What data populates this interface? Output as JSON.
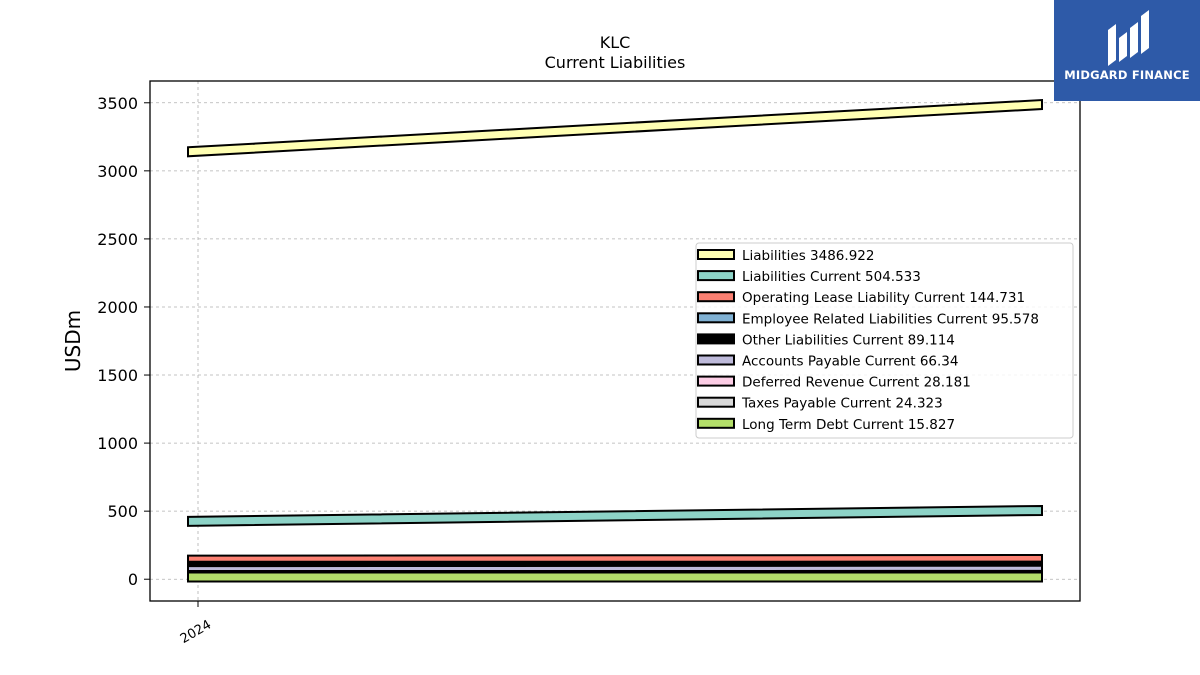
{
  "chart_data": {
    "type": "area",
    "title": "KLC",
    "subtitle": "Current  Liabilities",
    "ylabel": "USDm",
    "xlabel": "",
    "x_ticks": [
      "2024"
    ],
    "ylim": [
      -160,
      3660
    ],
    "y_ticks": [
      0,
      500,
      1000,
      1500,
      2000,
      2500,
      3000,
      3500
    ],
    "grid": true,
    "legend_position": "center-right",
    "series": [
      {
        "name": "Liabilities",
        "legend_label": "Liabilities  3486.922",
        "start": 3140,
        "end": 3487,
        "color": "#ffffb3"
      },
      {
        "name": "Liabilities Current",
        "legend_label": "Liabilities Current  504.533",
        "start": 425,
        "end": 505,
        "color": "#8dd3c7"
      },
      {
        "name": "Operating Lease Liability Current",
        "legend_label": "Operating Lease Liability Current  144.731",
        "start": 140,
        "end": 145,
        "color": "#fb8072"
      },
      {
        "name": "Employee Related Liabilities Current",
        "legend_label": "Employee Related Liabilities Current  95.578",
        "start": 95,
        "end": 96,
        "color": "#80b1d3"
      },
      {
        "name": "Other Liabilities Current",
        "legend_label": "Other Liabilities Current  89.114",
        "start": 89,
        "end": 89,
        "color": "#000000"
      },
      {
        "name": "Accounts Payable Current",
        "legend_label": "Accounts Payable Current  66.34",
        "start": 63,
        "end": 66,
        "color": "#bebada"
      },
      {
        "name": "Deferred Revenue Current",
        "legend_label": "Deferred Revenue Current  28.181",
        "start": 27,
        "end": 28,
        "color": "#fccde5"
      },
      {
        "name": "Taxes Payable Current",
        "legend_label": "Taxes Payable Current  24.323",
        "start": 24,
        "end": 24,
        "color": "#d9d9d9"
      },
      {
        "name": "Long Term Debt Current",
        "legend_label": "Long Term Debt Current  15.827",
        "start": 16,
        "end": 16,
        "color": "#b3de69"
      }
    ]
  },
  "logo": {
    "text": "MIDGARD FINANCE",
    "color": "#2e5aa8"
  }
}
